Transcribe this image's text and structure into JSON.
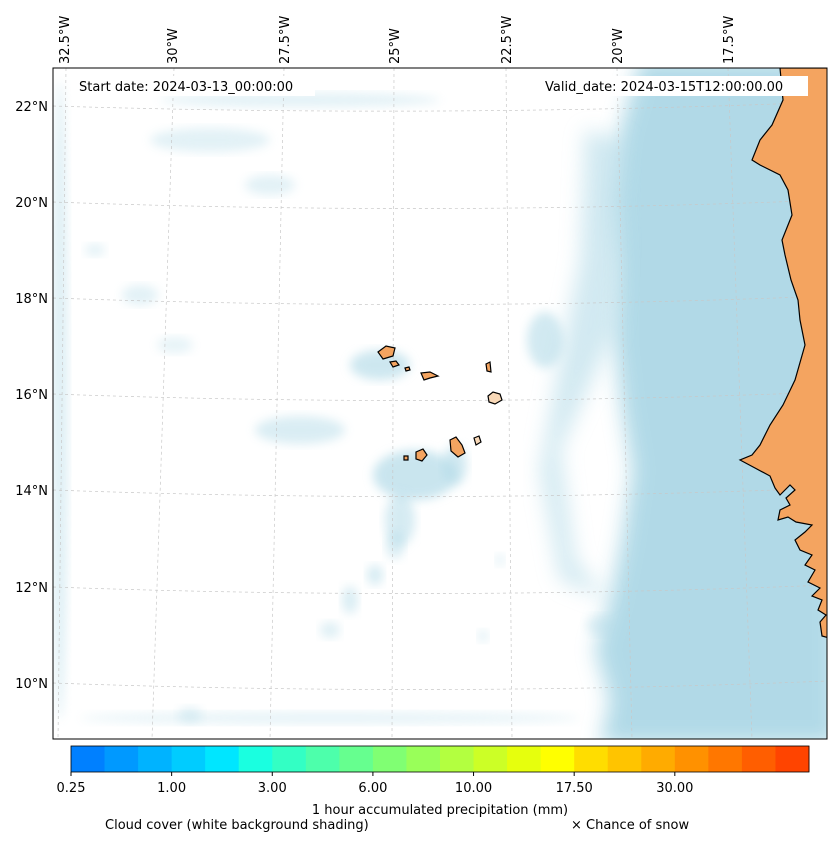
{
  "map": {
    "start_date": "Start date: 2024-03-13_00:00:00",
    "valid_date": "Valid_date: 2024-03-15T12:00:00.00",
    "lon_labels": [
      "32.5°W",
      "30°W",
      "27.5°W",
      "25°W",
      "22.5°W",
      "20°W",
      "17.5°W"
    ],
    "lat_labels": [
      "22°N",
      "20°N",
      "18°N",
      "16°N",
      "14°N",
      "12°N",
      "10°N"
    ],
    "colors": {
      "ocean": "#ffffff",
      "cloud": "#add8e6",
      "land": "#f4a460",
      "coast": "#000000",
      "grid": "#c8c8c8"
    }
  },
  "colorbar": {
    "label": "1 hour accumulated precipitation (mm)",
    "tick_labels": [
      "0.25",
      "1.00",
      "3.00",
      "6.00",
      "10.00",
      "17.50",
      "30.00"
    ],
    "colors": [
      "#0080ff",
      "#0099ff",
      "#00b3ff",
      "#00ccff",
      "#00e6ff",
      "#1affe0",
      "#33ffc4",
      "#4dffab",
      "#66ff8f",
      "#80ff73",
      "#99ff59",
      "#b3ff40",
      "#ccff26",
      "#e6ff0d",
      "#ffff00",
      "#ffdd00",
      "#ffc400",
      "#ffab00",
      "#ff9100",
      "#ff7700",
      "#ff5e00",
      "#ff4400"
    ]
  },
  "legend": {
    "cloud_cover": "Cloud cover (white background shading)",
    "snow": "× Chance of snow"
  }
}
